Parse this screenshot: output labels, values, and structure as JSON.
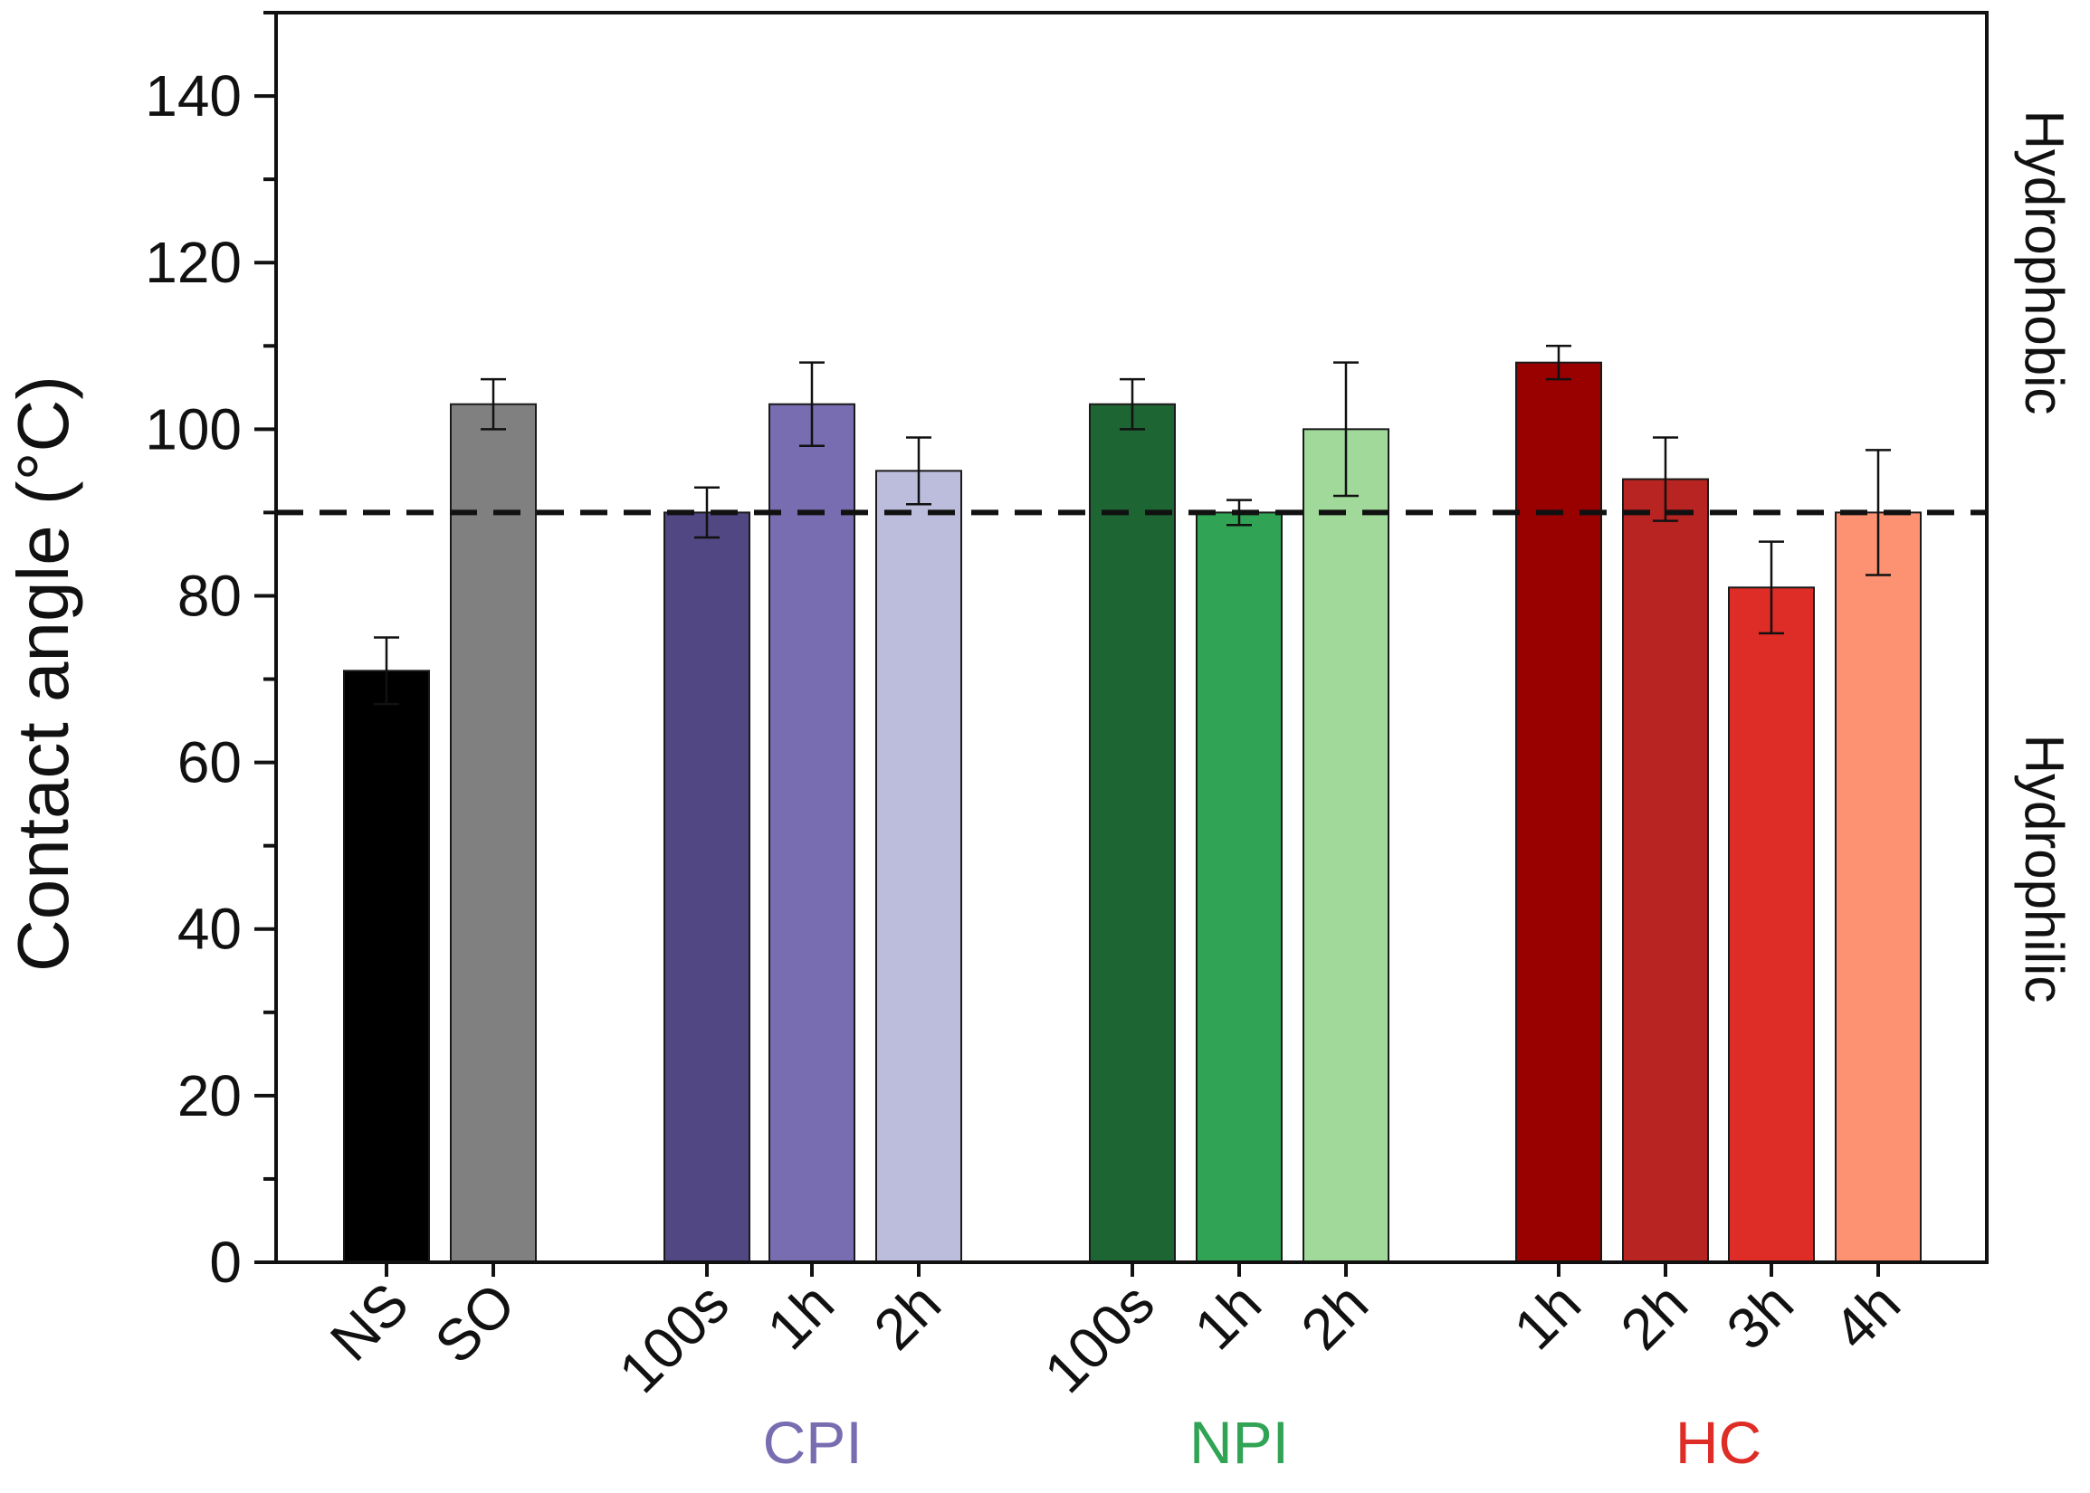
{
  "chart_data": {
    "type": "bar",
    "title": "",
    "xlabel": "",
    "ylabel": "Contact angle (°C)",
    "ylim": [
      0,
      150
    ],
    "yticks": [
      0,
      20,
      40,
      60,
      80,
      100,
      120,
      140
    ],
    "threshold": 90,
    "region_labels": {
      "above": "Hydrophobic",
      "below": "Hydrophilic"
    },
    "bars": [
      {
        "label": "NS",
        "group": "",
        "value": 71,
        "error": 4,
        "color": "#000000"
      },
      {
        "label": "SO",
        "group": "",
        "value": 103,
        "error": 3,
        "color": "#808080"
      },
      {
        "label": "100s",
        "group": "CPI",
        "value": 90,
        "error": 3,
        "color": "#514783"
      },
      {
        "label": "1h",
        "group": "CPI",
        "value": 103,
        "error": 5,
        "color": "#776db0"
      },
      {
        "label": "2h",
        "group": "CPI",
        "value": 95,
        "error": 4,
        "color": "#bcbddc"
      },
      {
        "label": "100s",
        "group": "NPI",
        "value": 103,
        "error": 3,
        "color": "#1e6534"
      },
      {
        "label": "1h",
        "group": "NPI",
        "value": 90,
        "error": 1.5,
        "color": "#31a354"
      },
      {
        "label": "2h",
        "group": "NPI",
        "value": 100,
        "error": 8,
        "color": "#a1d99b"
      },
      {
        "label": "1h",
        "group": "HC",
        "value": 108,
        "error": 2,
        "color": "#990000"
      },
      {
        "label": "2h",
        "group": "HC",
        "value": 94,
        "error": 5,
        "color": "#b82421"
      },
      {
        "label": "3h",
        "group": "HC",
        "value": 81,
        "error": 5.5,
        "color": "#de2d26"
      },
      {
        "label": "4h",
        "group": "HC",
        "value": 90,
        "error": 7.5,
        "color": "#fc9272"
      }
    ],
    "groups": [
      {
        "name": "CPI",
        "color": "#776db0"
      },
      {
        "name": "NPI",
        "color": "#31a354"
      },
      {
        "name": "HC",
        "color": "#de2d26"
      }
    ]
  }
}
